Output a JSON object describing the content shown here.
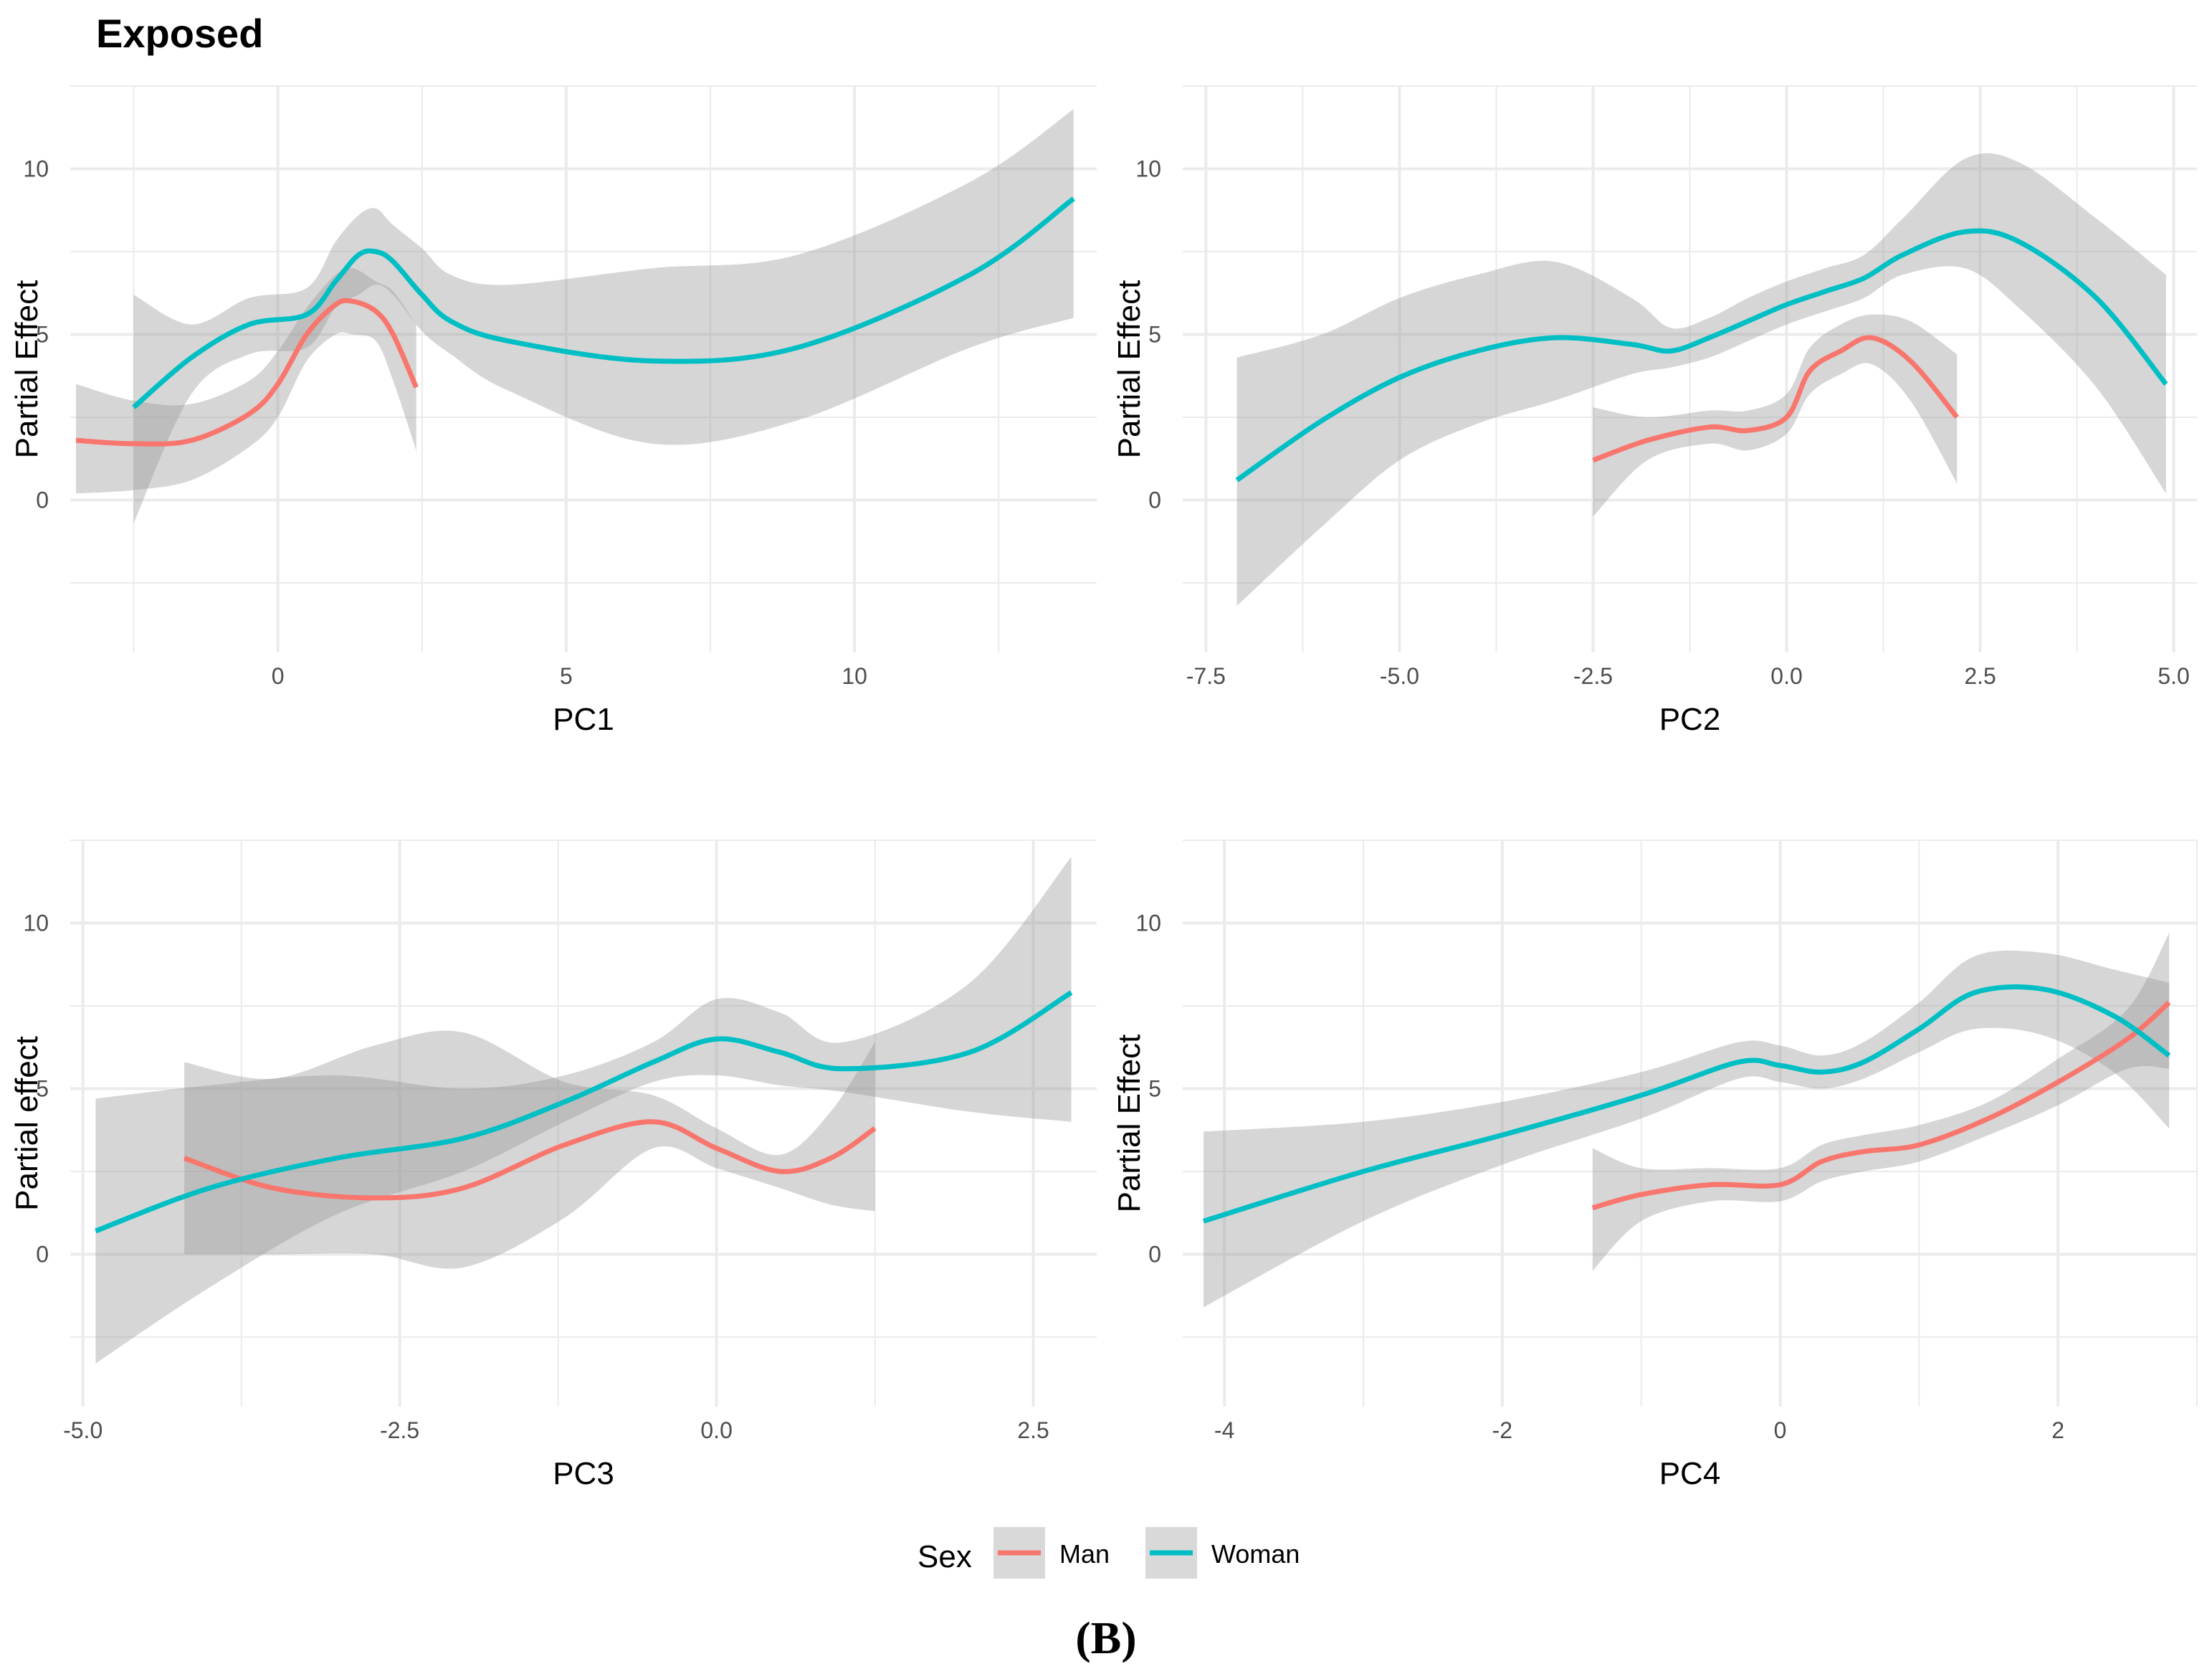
{
  "figure": {
    "title": "Exposed",
    "caption": "(B)",
    "legend": {
      "title": "Sex",
      "items": [
        {
          "label": "Man",
          "color": "#F8766D"
        },
        {
          "label": "Woman",
          "color": "#00BFC4"
        }
      ]
    },
    "colors": {
      "band": "#999999",
      "grid": "#ebebeb"
    }
  },
  "chart_data": [
    {
      "type": "line",
      "panel": "pc1",
      "xlabel": "PC1",
      "ylabel": "Partial Effect",
      "xlim": [
        -3.6,
        14.2
      ],
      "ylim": [
        -4.6,
        12.5
      ],
      "xticks": [
        0,
        5,
        10
      ],
      "xtick_labels": [
        "0",
        "5",
        "10"
      ],
      "yticks": [
        0,
        5,
        10
      ],
      "ytick_labels": [
        "0",
        "5",
        "10"
      ],
      "series": [
        {
          "name": "Man",
          "x": [
            -3.5,
            -2.5,
            -1.5,
            -0.5,
            0,
            0.5,
            1.0,
            1.3,
            1.7,
            2.0,
            2.4
          ],
          "y": [
            1.8,
            1.7,
            1.8,
            2.6,
            3.5,
            5.0,
            5.9,
            6.0,
            5.7,
            5.0,
            3.4
          ],
          "lower": [
            0.2,
            0.3,
            0.6,
            1.6,
            2.5,
            4.2,
            5.0,
            5.0,
            4.8,
            3.6,
            1.5
          ],
          "upper": [
            3.5,
            3.0,
            2.9,
            3.6,
            4.5,
            5.8,
            6.8,
            7.0,
            6.6,
            6.3,
            5.3
          ]
        },
        {
          "name": "Woman",
          "x": [
            -2.5,
            -1.5,
            -0.5,
            0.5,
            1.0,
            1.4,
            1.7,
            2.0,
            2.5,
            3.0,
            4.0,
            6.5,
            9.0,
            12.0,
            13.8
          ],
          "y": [
            2.8,
            4.3,
            5.3,
            5.6,
            6.6,
            7.4,
            7.5,
            7.2,
            6.2,
            5.4,
            4.8,
            4.2,
            4.6,
            6.8,
            9.1
          ],
          "lower": [
            -0.7,
            3.2,
            4.4,
            4.6,
            5.8,
            6.2,
            6.5,
            6.2,
            5.1,
            4.4,
            3.3,
            1.7,
            2.4,
            4.6,
            5.5
          ],
          "upper": [
            6.2,
            5.3,
            6.1,
            6.4,
            7.8,
            8.6,
            8.8,
            8.3,
            7.6,
            6.8,
            6.5,
            7.0,
            7.4,
            9.6,
            11.8
          ]
        }
      ]
    },
    {
      "type": "line",
      "panel": "pc2",
      "xlabel": "PC2",
      "ylabel": "Partial Effect",
      "xlim": [
        -7.8,
        5.3
      ],
      "ylim": [
        -4.6,
        12.5
      ],
      "xticks": [
        -7.5,
        -5.0,
        -2.5,
        0.0,
        2.5,
        5.0
      ],
      "xtick_labels": [
        "-7.5",
        "-5.0",
        "-2.5",
        "0.0",
        "2.5",
        "5.0"
      ],
      "yticks": [
        0,
        5,
        10
      ],
      "ytick_labels": [
        "0",
        "5",
        "10"
      ],
      "series": [
        {
          "name": "Man",
          "x": [
            -2.5,
            -1.8,
            -1.0,
            -0.5,
            0.0,
            0.3,
            0.7,
            1.1,
            1.6,
            2.2
          ],
          "y": [
            1.2,
            1.8,
            2.2,
            2.1,
            2.5,
            3.9,
            4.5,
            4.9,
            4.2,
            2.5
          ],
          "lower": [
            -0.5,
            1.2,
            1.7,
            1.5,
            2.0,
            3.2,
            3.8,
            4.1,
            3.0,
            0.5
          ],
          "upper": [
            2.8,
            2.5,
            2.7,
            2.7,
            3.2,
            4.6,
            5.3,
            5.6,
            5.4,
            4.4
          ]
        },
        {
          "name": "Woman",
          "x": [
            -7.1,
            -6.0,
            -5.0,
            -4.0,
            -3.0,
            -2.0,
            -1.5,
            -1.0,
            -0.5,
            0.0,
            0.5,
            1.0,
            1.5,
            2.3,
            3.0,
            4.0,
            4.9
          ],
          "y": [
            0.6,
            2.4,
            3.7,
            4.5,
            4.9,
            4.7,
            4.5,
            4.9,
            5.4,
            5.9,
            6.3,
            6.7,
            7.4,
            8.1,
            7.8,
            6.1,
            3.5
          ],
          "lower": [
            -3.2,
            -0.8,
            1.2,
            2.3,
            3.0,
            3.8,
            4.0,
            4.3,
            4.8,
            5.3,
            5.7,
            6.1,
            6.8,
            7.0,
            5.8,
            3.4,
            0.2
          ],
          "upper": [
            4.3,
            5.0,
            6.1,
            6.8,
            7.2,
            6.1,
            5.2,
            5.5,
            6.1,
            6.6,
            7.0,
            7.4,
            8.5,
            10.3,
            10.2,
            8.5,
            6.8
          ]
        }
      ]
    },
    {
      "type": "line",
      "panel": "pc3",
      "xlabel": "PC3",
      "ylabel": "Partial effect",
      "xlim": [
        -5.1,
        3.0
      ],
      "ylim": [
        -4.6,
        12.5
      ],
      "xticks": [
        -5.0,
        -2.5,
        0.0,
        2.5
      ],
      "xtick_labels": [
        "-5.0",
        "-2.5",
        "0.0",
        "2.5"
      ],
      "yticks": [
        0,
        5,
        10
      ],
      "ytick_labels": [
        "0",
        "5",
        "10"
      ],
      "series": [
        {
          "name": "Man",
          "x": [
            -4.2,
            -3.5,
            -2.7,
            -2.0,
            -1.2,
            -0.5,
            0.0,
            0.5,
            0.9,
            1.25
          ],
          "y": [
            2.9,
            2.0,
            1.7,
            2.0,
            3.3,
            4.0,
            3.2,
            2.5,
            2.9,
            3.8
          ],
          "lower": [
            0.0,
            0.0,
            0.0,
            -0.4,
            1.1,
            3.2,
            2.6,
            2.0,
            1.5,
            1.3
          ],
          "upper": [
            5.8,
            5.3,
            6.3,
            6.7,
            5.2,
            4.8,
            3.8,
            3.0,
            4.3,
            6.4
          ]
        },
        {
          "name": "Woman",
          "x": [
            -4.9,
            -4.0,
            -3.0,
            -2.0,
            -1.2,
            -0.5,
            0.0,
            0.5,
            1.0,
            2.0,
            2.8
          ],
          "y": [
            0.7,
            2.0,
            2.9,
            3.5,
            4.6,
            5.8,
            6.5,
            6.1,
            5.6,
            6.1,
            7.9
          ],
          "lower": [
            -3.3,
            -1.0,
            1.2,
            2.5,
            4.0,
            5.2,
            5.4,
            5.1,
            4.9,
            4.3,
            4.0
          ],
          "upper": [
            4.7,
            5.1,
            5.4,
            5.0,
            5.4,
            6.4,
            7.7,
            7.3,
            6.4,
            8.2,
            12.0
          ]
        }
      ]
    },
    {
      "type": "line",
      "panel": "pc4",
      "xlabel": "PC4",
      "ylabel": "Partial Effect",
      "xlim": [
        -4.3,
        3.0
      ],
      "ylim": [
        -4.6,
        12.5
      ],
      "xticks": [
        -4,
        -2,
        0,
        2
      ],
      "xtick_labels": [
        "-4",
        "-2",
        "0",
        "2"
      ],
      "yticks": [
        0,
        5,
        10
      ],
      "ytick_labels": [
        "0",
        "5",
        "10"
      ],
      "series": [
        {
          "name": "Man",
          "x": [
            -1.35,
            -1.0,
            -0.5,
            0.0,
            0.3,
            0.6,
            1.0,
            1.5,
            2.0,
            2.5,
            2.8
          ],
          "y": [
            1.4,
            1.8,
            2.1,
            2.1,
            2.8,
            3.1,
            3.3,
            4.1,
            5.2,
            6.5,
            7.6
          ],
          "lower": [
            -0.5,
            1.0,
            1.6,
            1.6,
            2.2,
            2.5,
            2.8,
            3.6,
            4.5,
            5.6,
            5.6
          ],
          "upper": [
            3.2,
            2.6,
            2.6,
            2.6,
            3.3,
            3.6,
            3.9,
            4.6,
            5.9,
            7.4,
            9.7
          ]
        },
        {
          "name": "Woman",
          "x": [
            -4.15,
            -3.0,
            -2.0,
            -1.0,
            -0.3,
            0.0,
            0.3,
            0.6,
            1.0,
            1.4,
            1.9,
            2.4,
            2.8
          ],
          "y": [
            1.0,
            2.5,
            3.6,
            4.8,
            5.8,
            5.7,
            5.5,
            5.8,
            6.8,
            7.9,
            8.0,
            7.2,
            6.0
          ],
          "lower": [
            -1.6,
            1.0,
            2.7,
            4.1,
            5.3,
            5.2,
            5.0,
            5.3,
            6.1,
            6.8,
            6.6,
            5.5,
            3.8
          ],
          "upper": [
            3.7,
            4.0,
            4.6,
            5.5,
            6.4,
            6.3,
            6.0,
            6.4,
            7.6,
            9.0,
            9.1,
            8.6,
            8.2
          ]
        }
      ]
    }
  ]
}
